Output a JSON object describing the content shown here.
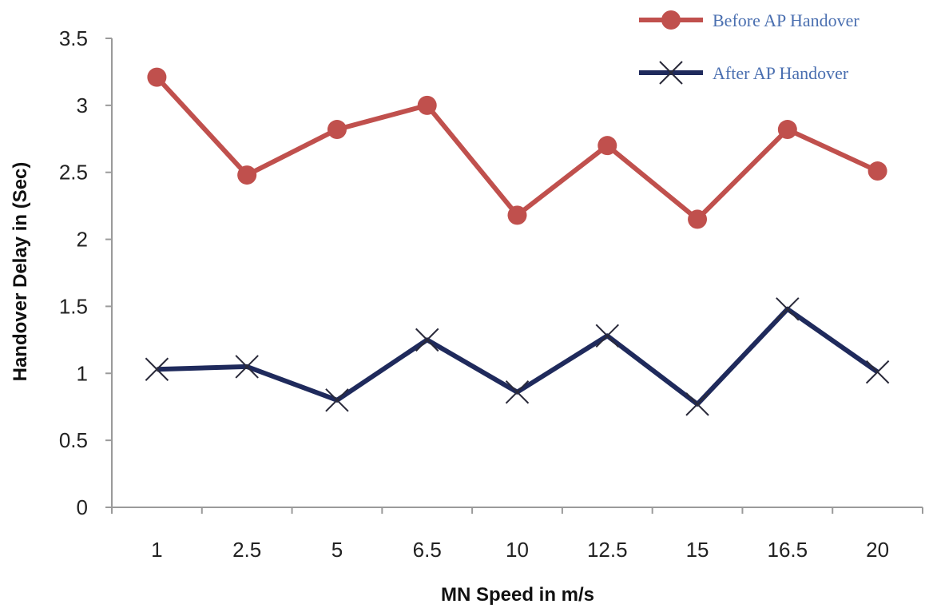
{
  "chart_data": {
    "type": "line",
    "categories": [
      "1",
      "2.5",
      "5",
      "6.5",
      "10",
      "12.5",
      "15",
      "16.5",
      "20"
    ],
    "series": [
      {
        "name": "Before AP Handover",
        "values": [
          3.21,
          2.48,
          2.82,
          3.0,
          2.18,
          2.7,
          2.15,
          2.82,
          2.51
        ],
        "color": "#c0504d",
        "marker": "circle"
      },
      {
        "name": "After AP Handover",
        "values": [
          1.03,
          1.05,
          0.8,
          1.25,
          0.86,
          1.28,
          0.77,
          1.48,
          1.01
        ],
        "color": "#1f2a5c",
        "marker": "x"
      }
    ],
    "xlabel": "MN Speed in m/s",
    "ylabel": "Handover Delay in (Sec)",
    "ylim": [
      0,
      3.5
    ],
    "yticks": [
      "0",
      "0.5",
      "1",
      "1.5",
      "2",
      "2.5",
      "3",
      "3.5"
    ],
    "grid": false,
    "legend_position": "top-right",
    "legend_text_color": "#4a6fb0"
  }
}
